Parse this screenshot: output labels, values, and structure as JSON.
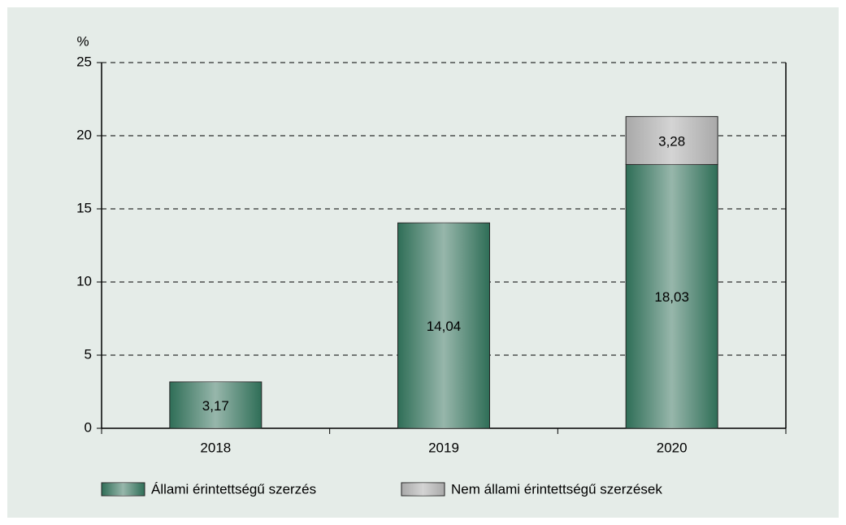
{
  "chart_data": {
    "type": "stacked_bar",
    "ylabel": "%",
    "categories": [
      "2018",
      "2019",
      "2020"
    ],
    "series": [
      {
        "name": "Állami érintettségű szerzés",
        "color": "#2f6e57",
        "values": [
          3.17,
          14.04,
          18.03
        ],
        "value_labels": [
          "3,17",
          "14,04",
          "18,03"
        ]
      },
      {
        "name": "Nem állami érintettségű szerzések",
        "color": "#a9a9a9",
        "values": [
          null,
          null,
          3.28
        ],
        "value_labels": [
          null,
          null,
          "3,28"
        ]
      }
    ],
    "ylim": [
      0,
      25
    ],
    "yticks": [
      0,
      5,
      10,
      15,
      20,
      25
    ],
    "grid": true
  }
}
